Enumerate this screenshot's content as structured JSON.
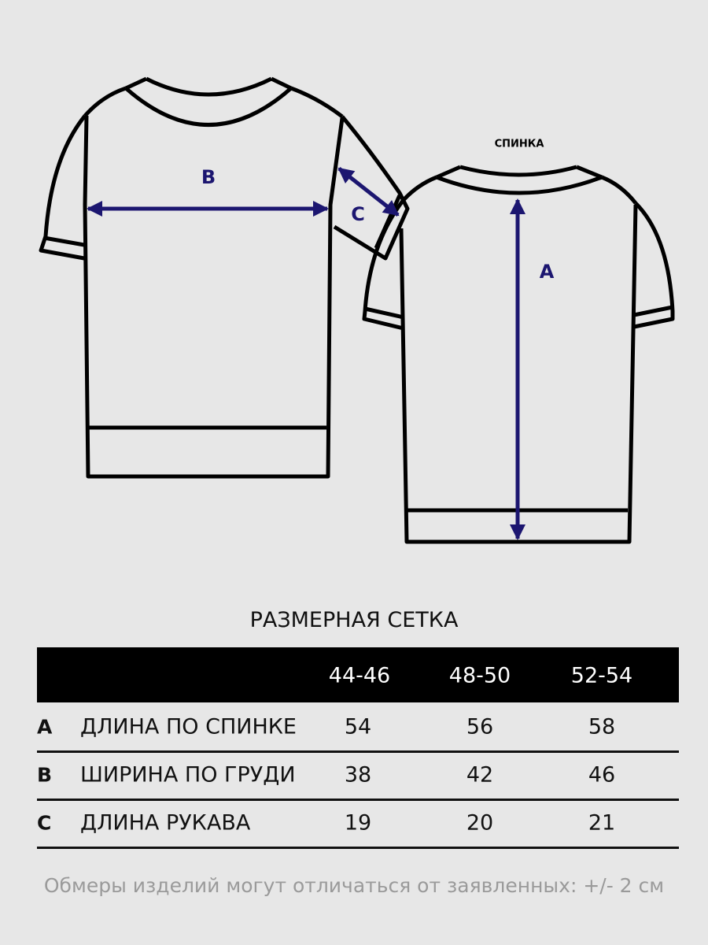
{
  "colors": {
    "background": "#e7e7e7",
    "outline": "#000000",
    "measure_arrow": "#1c1670"
  },
  "diagram": {
    "front_labels": {
      "chest_width": "B",
      "sleeve_length": "C"
    },
    "back_title": "СПИНКА",
    "back_labels": {
      "back_length": "A"
    }
  },
  "table": {
    "title": "РАЗМЕРНАЯ СЕТКА",
    "sizes": [
      "44-46",
      "48-50",
      "52-54"
    ],
    "rows": [
      {
        "letter": "A",
        "name": "ДЛИНА ПО СПИНКЕ",
        "values": [
          "54",
          "56",
          "58"
        ]
      },
      {
        "letter": "B",
        "name": "ШИРИНА ПО ГРУДИ",
        "values": [
          "38",
          "42",
          "46"
        ]
      },
      {
        "letter": "C",
        "name": "ДЛИНА РУКАВА",
        "values": [
          "19",
          "20",
          "21"
        ]
      }
    ]
  },
  "footnote": "Обмеры изделий могут отличаться от заявленных: +/- 2 см"
}
